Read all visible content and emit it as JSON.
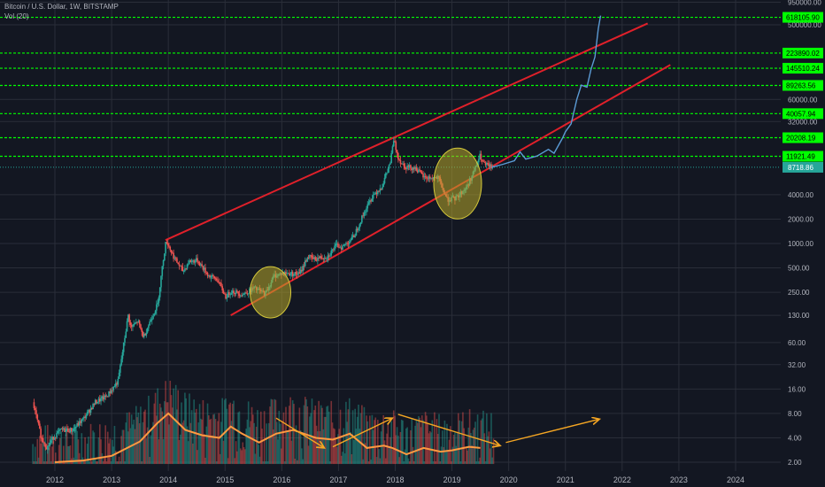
{
  "chart_data": {
    "type": "line",
    "symbol_line": "Bitcoin / U.S. Dollar, 1W, BITSTAMP",
    "indicator_line": "Vol (20)",
    "scale": "log",
    "x_ticks": [
      "2012",
      "2013",
      "2014",
      "2015",
      "2016",
      "2017",
      "2018",
      "2019",
      "2020",
      "2021",
      "2022",
      "2023",
      "2024"
    ],
    "y_ticks": [
      {
        "label": "950000.00",
        "value": 950000
      },
      {
        "label": "500000.00",
        "value": 500000
      },
      {
        "label": "60000.00",
        "value": 60000
      },
      {
        "label": "32000.00",
        "value": 32000
      },
      {
        "label": "4000.00",
        "value": 4000
      },
      {
        "label": "2000.00",
        "value": 2000
      },
      {
        "label": "1000.00",
        "value": 1000
      },
      {
        "label": "500.00",
        "value": 500
      },
      {
        "label": "250.00",
        "value": 250
      },
      {
        "label": "130.00",
        "value": 130
      },
      {
        "label": "60.00",
        "value": 60
      },
      {
        "label": "32.00",
        "value": 32
      },
      {
        "label": "16.00",
        "value": 16
      },
      {
        "label": "8.00",
        "value": 8
      },
      {
        "label": "4.00",
        "value": 4
      },
      {
        "label": "2.00",
        "value": 2
      }
    ],
    "levels": [
      {
        "label": "618105.90",
        "value": 618105.9
      },
      {
        "label": "223890.02",
        "value": 223890.02
      },
      {
        "label": "145510.24",
        "value": 145510.24
      },
      {
        "label": "89263.56",
        "value": 89263.56
      },
      {
        "label": "40057.94",
        "value": 40057.94
      },
      {
        "label": "20208.19",
        "value": 20208.19
      },
      {
        "label": "11921.49",
        "value": 11921.49
      }
    ],
    "current_price": {
      "label": "8718.86",
      "value": 8718.86
    },
    "price_history": [
      [
        2011.6,
        11
      ],
      [
        2011.75,
        4
      ],
      [
        2011.85,
        3
      ],
      [
        2011.95,
        4
      ],
      [
        2012.1,
        5
      ],
      [
        2012.3,
        5
      ],
      [
        2012.5,
        7
      ],
      [
        2012.7,
        11
      ],
      [
        2012.9,
        13
      ],
      [
        2013.1,
        20
      ],
      [
        2013.28,
        130
      ],
      [
        2013.33,
        90
      ],
      [
        2013.45,
        110
      ],
      [
        2013.55,
        70
      ],
      [
        2013.7,
        125
      ],
      [
        2013.8,
        180
      ],
      [
        2013.9,
        650
      ],
      [
        2013.95,
        1100
      ],
      [
        2014.02,
        850
      ],
      [
        2014.1,
        650
      ],
      [
        2014.25,
        450
      ],
      [
        2014.35,
        600
      ],
      [
        2014.5,
        620
      ],
      [
        2014.7,
        400
      ],
      [
        2014.85,
        360
      ],
      [
        2015.0,
        220
      ],
      [
        2015.1,
        260
      ],
      [
        2015.3,
        235
      ],
      [
        2015.5,
        280
      ],
      [
        2015.7,
        240
      ],
      [
        2015.85,
        400
      ],
      [
        2016.0,
        430
      ],
      [
        2016.3,
        420
      ],
      [
        2016.45,
        700
      ],
      [
        2016.55,
        640
      ],
      [
        2016.8,
        700
      ],
      [
        2016.95,
        950
      ],
      [
        2017.05,
        900
      ],
      [
        2017.25,
        1200
      ],
      [
        2017.45,
        2500
      ],
      [
        2017.6,
        4000
      ],
      [
        2017.75,
        5000
      ],
      [
        2017.9,
        10000
      ],
      [
        2017.96,
        19000
      ],
      [
        2018.05,
        11000
      ],
      [
        2018.15,
        9000
      ],
      [
        2018.35,
        8500
      ],
      [
        2018.5,
        6500
      ],
      [
        2018.75,
        6400
      ],
      [
        2018.9,
        3500
      ],
      [
        2019.05,
        3600
      ],
      [
        2019.25,
        5000
      ],
      [
        2019.4,
        8500
      ],
      [
        2019.48,
        12000
      ],
      [
        2019.55,
        9500
      ],
      [
        2019.7,
        8718.86
      ]
    ],
    "projection": [
      [
        2019.7,
        8718.86
      ],
      [
        2019.9,
        9500
      ],
      [
        2020.1,
        10500
      ],
      [
        2020.2,
        13500
      ],
      [
        2020.3,
        11000
      ],
      [
        2020.5,
        12000
      ],
      [
        2020.7,
        14500
      ],
      [
        2020.8,
        13000
      ],
      [
        2020.95,
        20000
      ],
      [
        2021.0,
        24000
      ],
      [
        2021.1,
        30000
      ],
      [
        2021.2,
        60000
      ],
      [
        2021.28,
        90000
      ],
      [
        2021.38,
        85000
      ],
      [
        2021.45,
        140000
      ],
      [
        2021.52,
        200000
      ],
      [
        2021.58,
        450000
      ],
      [
        2021.62,
        650000
      ]
    ],
    "channel": {
      "upper": [
        [
          2013.95,
          1100
        ],
        [
          2022.45,
          520000
        ]
      ],
      "lower": [
        [
          2015.1,
          130
        ],
        [
          2022.85,
          160000
        ]
      ]
    },
    "highlight_zones": [
      {
        "x": 2015.8,
        "y": 250
      },
      {
        "x": 2019.1,
        "y": 5500
      }
    ],
    "volume_ma": [
      [
        2012.0,
        2.0
      ],
      [
        2012.5,
        2.1
      ],
      [
        2013.0,
        2.4
      ],
      [
        2013.5,
        3.6
      ],
      [
        2013.8,
        6.0
      ],
      [
        2014.0,
        8.0
      ],
      [
        2014.3,
        5.0
      ],
      [
        2014.6,
        4.3
      ],
      [
        2014.9,
        4.0
      ],
      [
        2015.1,
        5.5
      ],
      [
        2015.3,
        4.5
      ],
      [
        2015.6,
        3.5
      ],
      [
        2015.9,
        4.5
      ],
      [
        2016.2,
        5.0
      ],
      [
        2016.6,
        4.0
      ],
      [
        2016.9,
        3.8
      ],
      [
        2017.2,
        4.5
      ],
      [
        2017.5,
        3.0
      ],
      [
        2017.8,
        3.2
      ],
      [
        2017.95,
        3.0
      ],
      [
        2018.2,
        2.5
      ],
      [
        2018.5,
        3.0
      ],
      [
        2018.8,
        2.7
      ],
      [
        2019.0,
        2.8
      ],
      [
        2019.3,
        3.1
      ],
      [
        2019.5,
        3.0
      ]
    ],
    "trend_arrows": [
      {
        "from": [
          2015.9,
          7.0
        ],
        "to": [
          2016.75,
          3.0
        ]
      },
      {
        "from": [
          2016.9,
          3.1
        ],
        "to": [
          2017.95,
          7.0
        ]
      },
      {
        "from": [
          2018.05,
          7.8
        ],
        "to": [
          2019.85,
          3.2
        ]
      },
      {
        "from": [
          2019.95,
          3.5
        ],
        "to": [
          2021.6,
          6.8
        ]
      }
    ],
    "colors": {
      "background": "#131722",
      "grid": "#2a2e39",
      "up": "#26a69a",
      "down": "#ef5350",
      "projection": "#5b9bd5",
      "channel": "#e0202a",
      "level_line": "#00ff00",
      "level_label_bg": "#00ff00",
      "current_label_bg": "#26a69a",
      "volume_ma": "#ff9a40",
      "arrow": "#f5a623",
      "zone_fill": "#b8a82a",
      "axis_text": "#b2b5be"
    }
  }
}
